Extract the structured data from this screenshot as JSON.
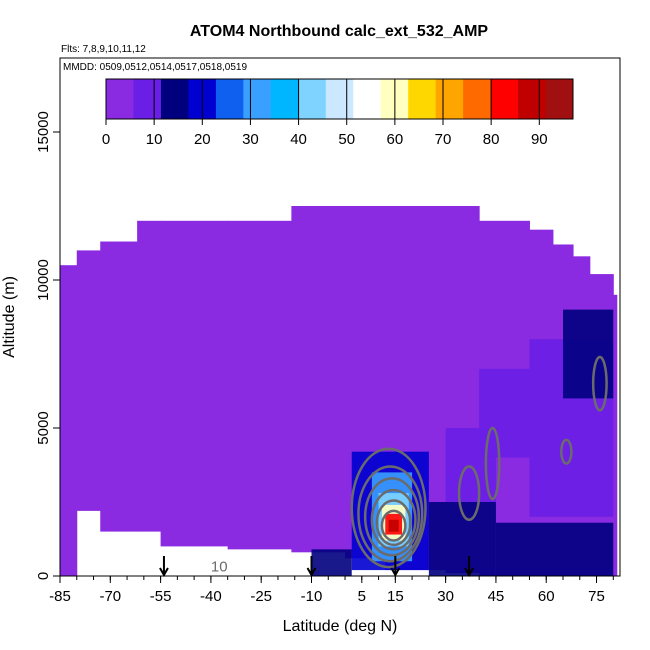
{
  "chart_data": {
    "type": "heatmap",
    "title": "ATOM4 Northbound calc_ext_532_AMP",
    "subtitle_flights": "Flts: 7,8,9,10,11,12",
    "subtitle_dates": "MMDD: 0509,0512,0514,0517,0518,0519",
    "xlabel": "Latitude (deg N)",
    "ylabel": "Altitude (m)",
    "xlim": [
      -85,
      82
    ],
    "ylim": [
      0,
      17500
    ],
    "x_ticks": [
      -85,
      -70,
      -55,
      -40,
      -25,
      -10,
      5,
      15,
      30,
      45,
      60,
      75
    ],
    "y_ticks": [
      0,
      5000,
      10000,
      15000
    ],
    "colorbar": {
      "range": [
        0,
        97
      ],
      "ticks": [
        0,
        10,
        20,
        30,
        40,
        50,
        60,
        70,
        80,
        90
      ],
      "colors": [
        "#8a2be2",
        "#6a1ee6",
        "#00007f",
        "#0000d0",
        "#1060f0",
        "#3aa0ff",
        "#00b7ff",
        "#7fd4ff",
        "#cce8ff",
        "#ffffff",
        "#ffffc0",
        "#ffd700",
        "#ffa500",
        "#ff6a00",
        "#ff0000",
        "#c00000",
        "#a01010"
      ]
    },
    "colorbar_boundaries": [
      0,
      10,
      20,
      30,
      40,
      50,
      60,
      70,
      80,
      90
    ],
    "contour_label": "10",
    "arrows_lat": [
      -54,
      -10,
      15,
      37
    ],
    "background_level": 4,
    "profile": [
      {
        "lat": -85,
        "top": 10500,
        "bottom": 0
      },
      {
        "lat": -84,
        "top": 10500,
        "bottom": 0
      },
      {
        "lat": -80,
        "top": 11000,
        "bottom": 2200
      },
      {
        "lat": -73,
        "top": 11300,
        "bottom": 1500
      },
      {
        "lat": -66,
        "top": 11300,
        "bottom": 1500
      },
      {
        "lat": -62,
        "top": 12000,
        "bottom": 1500
      },
      {
        "lat": -55,
        "top": 12000,
        "bottom": 1000
      },
      {
        "lat": -45,
        "top": 12000,
        "bottom": 1000
      },
      {
        "lat": -35,
        "top": 12000,
        "bottom": 900
      },
      {
        "lat": -25,
        "top": 12000,
        "bottom": 900
      },
      {
        "lat": -16,
        "top": 12500,
        "bottom": 800
      },
      {
        "lat": 0,
        "top": 12500,
        "bottom": 600
      },
      {
        "lat": 12,
        "top": 12500,
        "bottom": 200
      },
      {
        "lat": 30,
        "top": 12500,
        "bottom": 100
      },
      {
        "lat": 40,
        "top": 12000,
        "bottom": 0
      },
      {
        "lat": 55,
        "top": 11700,
        "bottom": 0
      },
      {
        "lat": 62,
        "top": 11200,
        "bottom": 0
      },
      {
        "lat": 68,
        "top": 10800,
        "bottom": 0
      },
      {
        "lat": 73,
        "top": 10200,
        "bottom": 0
      },
      {
        "lat": 80,
        "top": 9500,
        "bottom": 0
      }
    ],
    "patches": [
      {
        "lat0": 2,
        "lat1": 25,
        "alt0": 200,
        "alt1": 4200,
        "value": 18
      },
      {
        "lat0": 8,
        "lat1": 20,
        "alt0": 500,
        "alt1": 3500,
        "value": 32
      },
      {
        "lat0": 10,
        "lat1": 19,
        "alt0": 1000,
        "alt1": 2800,
        "value": 45
      },
      {
        "lat0": 11,
        "lat1": 18,
        "alt0": 1200,
        "alt1": 2400,
        "value": 62
      },
      {
        "lat0": 12,
        "lat1": 17,
        "alt0": 1400,
        "alt1": 2100,
        "value": 80
      },
      {
        "lat0": 13,
        "lat1": 16,
        "alt0": 1500,
        "alt1": 1900,
        "value": 88
      },
      {
        "lat0": 25,
        "lat1": 45,
        "alt0": 0,
        "alt1": 2500,
        "value": 14
      },
      {
        "lat0": 45,
        "lat1": 80,
        "alt0": 0,
        "alt1": 1800,
        "value": 12
      },
      {
        "lat0": 30,
        "lat1": 45,
        "alt0": 2500,
        "alt1": 5000,
        "value": 10
      },
      {
        "lat0": 55,
        "lat1": 80,
        "alt0": 2000,
        "alt1": 8000,
        "value": 11
      },
      {
        "lat0": -10,
        "lat1": 2,
        "alt0": 0,
        "alt1": 900,
        "value": 12
      },
      {
        "lat0": 40,
        "lat1": 55,
        "alt0": 4000,
        "alt1": 7000,
        "value": 10
      },
      {
        "lat0": 65,
        "lat1": 80,
        "alt0": 6000,
        "alt1": 9000,
        "value": 13
      }
    ],
    "contours": [
      {
        "lat": 14.5,
        "alt": 1700,
        "rx": 3.5,
        "ry": 500
      },
      {
        "lat": 14.5,
        "alt": 1800,
        "rx": 5,
        "ry": 750
      },
      {
        "lat": 14.5,
        "alt": 1900,
        "rx": 6.5,
        "ry": 1000
      },
      {
        "lat": 14,
        "alt": 2000,
        "rx": 8,
        "ry": 1300
      },
      {
        "lat": 13.5,
        "alt": 2100,
        "rx": 9.5,
        "ry": 1600
      },
      {
        "lat": 13,
        "alt": 2300,
        "rx": 11,
        "ry": 2000
      },
      {
        "lat": 37,
        "alt": 2800,
        "rx": 3,
        "ry": 900
      },
      {
        "lat": 44,
        "alt": 3800,
        "rx": 2,
        "ry": 1200
      },
      {
        "lat": 76,
        "alt": 6500,
        "rx": 2,
        "ry": 900
      },
      {
        "lat": 66,
        "alt": 4200,
        "rx": 1.5,
        "ry": 400
      }
    ]
  }
}
